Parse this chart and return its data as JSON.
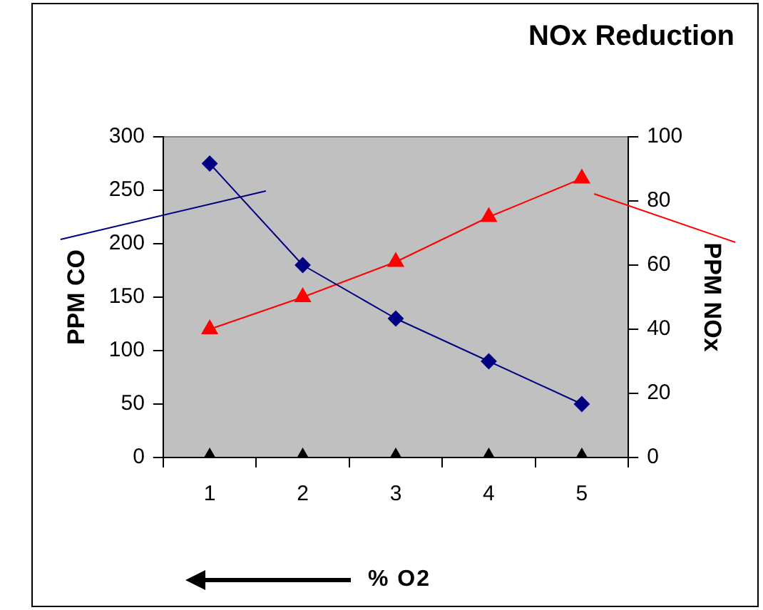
{
  "chart_data": {
    "type": "line",
    "title": "NOx Reduction",
    "xlabel": "% O2",
    "ylabel": "PPM CO",
    "y2label": "PPM NOx",
    "categories": [
      "1",
      "2",
      "3",
      "4",
      "5"
    ],
    "series": [
      {
        "color": "#000080",
        "marker": "diamond",
        "values": [
          275,
          180,
          130,
          90,
          50
        ]
      },
      {
        "color": "#ff0000",
        "marker": "triangle",
        "axis": "y2",
        "values": [
          40,
          50,
          61,
          75,
          87
        ]
      },
      {
        "type": "scatter",
        "color": "#000000",
        "marker": "triangle",
        "x": [
          "1",
          "2",
          "3",
          "4",
          "5"
        ],
        "values": [
          0,
          0,
          0,
          0,
          0
        ]
      }
    ],
    "ylim": [
      0,
      300
    ],
    "yticks": [
      0,
      50,
      100,
      150,
      200,
      250,
      300
    ],
    "y2lim": [
      0,
      100
    ],
    "y2ticks": [
      0,
      20,
      40,
      60,
      80,
      100
    ],
    "grid": false,
    "legend": false
  }
}
